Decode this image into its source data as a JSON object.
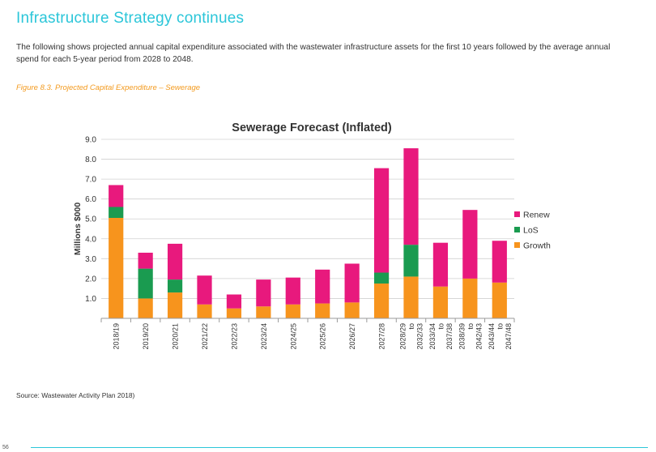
{
  "page": {
    "title": "Infrastructure Strategy continues",
    "intro": "The following shows projected annual capital expenditure associated with the wastewater infrastructure assets for the first 10 years followed by the average annual spend for each 5-year period from 2028 to 2048.",
    "figure_caption": "Figure 8.3. Projected Capital Expenditure – Sewerage",
    "source": "Source:  Wastewater Activity Plan 2018)",
    "page_number": "56"
  },
  "chart_data": {
    "type": "bar",
    "stacked": true,
    "title": "Sewerage Forecast (Inflated)",
    "ylabel": "Millions  $000",
    "xlabel": "",
    "ylim": [
      0,
      9
    ],
    "yticks": [
      "1.0",
      "2.0",
      "3.0",
      "4.0",
      "5.0",
      "6.0",
      "7.0",
      "8.0",
      "9.0"
    ],
    "grid": true,
    "legend_position": "right",
    "categories": [
      [
        "2018/19"
      ],
      [
        "2019/20"
      ],
      [
        "2020/21"
      ],
      [
        "2021/22"
      ],
      [
        "2022/23"
      ],
      [
        "2023/24"
      ],
      [
        "2024/25"
      ],
      [
        "2025/26"
      ],
      [
        "2026/27"
      ],
      [
        "2027/28"
      ],
      [
        "2028/29",
        "to",
        "2032/33"
      ],
      [
        "2033/34",
        "to",
        "2037/38"
      ],
      [
        "2038/39",
        "to",
        "2042/43"
      ],
      [
        "2043/44",
        "to",
        "2047/48"
      ]
    ],
    "series": [
      {
        "name": "Growth",
        "color": "#f7941d",
        "values": [
          5.05,
          1.0,
          1.3,
          0.7,
          0.5,
          0.6,
          0.7,
          0.75,
          0.8,
          1.75,
          2.1,
          1.6,
          2.0,
          1.8
        ]
      },
      {
        "name": "LoS",
        "color": "#1a9b50",
        "values": [
          0.55,
          1.5,
          0.65,
          0,
          0,
          0,
          0,
          0,
          0,
          0.55,
          1.6,
          0,
          0,
          0
        ]
      },
      {
        "name": "Renew",
        "color": "#e8197d",
        "values": [
          1.1,
          0.8,
          1.8,
          1.45,
          0.7,
          1.35,
          1.35,
          1.7,
          1.95,
          5.25,
          4.85,
          2.2,
          3.45,
          2.1
        ]
      }
    ],
    "legend_order": [
      "Renew",
      "LoS",
      "Growth"
    ]
  }
}
